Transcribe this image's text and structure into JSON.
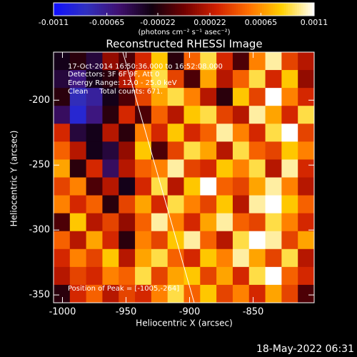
{
  "chart_data": {
    "type": "heatmap",
    "title": "Reconstructed RHESSI Image",
    "xlabel": "Heliocentric X (arcsec)",
    "ylabel": "Heliocentric Y (arcsec)",
    "colorbar_label": "(photons cm⁻² s⁻¹ asec⁻²)",
    "annotations": [
      "17-Oct-2014 16:50:36.000 to 16:52:08.000",
      "Detectors: 3F 6F 9F, Att 0",
      "Energy Range: 12.0 - 25.0 keV",
      "Clean     Total counts: 671."
    ],
    "peak_label": "Position of Peak = [-1005,-264]",
    "footer": "18-May-2022 06:31",
    "xlim": [
      -1007,
      -802
    ],
    "xticks": [
      -1000,
      -950,
      -900,
      -850
    ],
    "ylim": [
      -356,
      -163
    ],
    "yticks": [
      -350,
      -300,
      -250,
      -200
    ],
    "clim": [
      -0.0011,
      0.0011
    ],
    "cticks": [
      -0.0011,
      -0.00065,
      -0.00022,
      0.00022,
      0.00065,
      0.0011
    ],
    "colormap": [
      "#1010ff",
      "#3030c0",
      "#401070",
      "#100010",
      "#700000",
      "#d02000",
      "#ff7000",
      "#ffd000",
      "#ffffff"
    ],
    "z": [
      [
        -0.0003,
        -0.0002,
        -0.0004,
        0.0001,
        -0.0001,
        0.0003,
        0.0008,
        -0.0002,
        0.0005,
        0.0009,
        0.0003,
        -0.0001,
        0.0006,
        0.001,
        0.0004,
        0.0002
      ],
      [
        -0.0004,
        -0.0006,
        -0.0003,
        -0.0002,
        0.0002,
        0.0006,
        0.0009,
        0.0004,
        -0.0001,
        0.0007,
        0.0002,
        0.0005,
        0.0009,
        0.0003,
        0.0008,
        0.0001
      ],
      [
        -0.0002,
        -0.0008,
        -0.0007,
        -0.0003,
        -0.0001,
        0.0004,
        0.0007,
        0.0009,
        0.0006,
        0.0002,
        -0.0002,
        0.0008,
        0.0004,
        0.0011,
        0.0006,
        0.0003
      ],
      [
        -0.0005,
        -0.0009,
        -0.0006,
        -0.0002,
        0.0003,
        -0.0001,
        0.0005,
        0.0002,
        0.0008,
        0.0009,
        0.0004,
        0.0002,
        0.001,
        0.0007,
        0.0003,
        0.0009
      ],
      [
        0.0003,
        -0.0004,
        -0.0003,
        0.0002,
        -0.0002,
        0.0006,
        0.0003,
        0.0008,
        0.0003,
        0.0005,
        0.001,
        0.0006,
        0.0003,
        0.0009,
        0.0011,
        0.0004
      ],
      [
        0.0005,
        0.0002,
        -0.0003,
        -0.0004,
        0.0001,
        0.0008,
        -0.0001,
        0.0004,
        0.0009,
        0.0007,
        0.0002,
        0.0009,
        0.0005,
        0.0004,
        0.0008,
        0.0006
      ],
      [
        0.0007,
        -0.0002,
        0.0003,
        -0.0005,
        0.0002,
        0.0005,
        0.0006,
        0.001,
        0.0004,
        0.0003,
        0.0008,
        0.0006,
        0.0009,
        0.0002,
        0.001,
        0.0003
      ],
      [
        0.0004,
        0.0006,
        -0.0001,
        0.0002,
        -0.0003,
        0.0003,
        0.0009,
        0.0002,
        0.0008,
        0.0011,
        0.0005,
        0.0004,
        0.0007,
        0.001,
        0.0006,
        0.0002
      ],
      [
        0.0006,
        0.0003,
        0.0005,
        -0.0002,
        0.0004,
        0.0007,
        0.0003,
        0.0009,
        0.0006,
        0.0004,
        0.0008,
        0.0002,
        0.001,
        0.0011,
        0.0008,
        0.0005
      ],
      [
        -0.0001,
        0.0008,
        0.0002,
        0.0004,
        0.0001,
        0.0005,
        0.001,
        0.0006,
        0.0003,
        0.0007,
        0.001,
        0.0005,
        0.0004,
        0.0009,
        0.0006,
        0.0003
      ],
      [
        0.0005,
        0.0002,
        0.0007,
        0.0003,
        -0.0002,
        0.0006,
        0.0004,
        0.0008,
        0.001,
        0.0005,
        0.0002,
        0.0009,
        0.0011,
        0.001,
        0.0004,
        0.0007
      ],
      [
        0.0003,
        0.0006,
        0.0004,
        0.0008,
        0.0002,
        0.0007,
        0.0009,
        0.0005,
        0.0003,
        0.0008,
        0.0006,
        0.001,
        0.0007,
        0.0004,
        0.0009,
        0.0002
      ],
      [
        0.0002,
        0.0004,
        0.0003,
        0.0006,
        0.0005,
        0.0009,
        0.0004,
        0.0007,
        0.0008,
        0.0004,
        0.0007,
        0.0003,
        0.0009,
        0.0011,
        0.0005,
        0.0003
      ],
      [
        -0.0002,
        0.0003,
        0.0005,
        0.0002,
        0.0004,
        0.0003,
        0.0006,
        0.0009,
        0.0005,
        0.0008,
        0.0004,
        0.0006,
        0.0003,
        0.0007,
        0.0004,
        -0.0001
      ]
    ]
  }
}
